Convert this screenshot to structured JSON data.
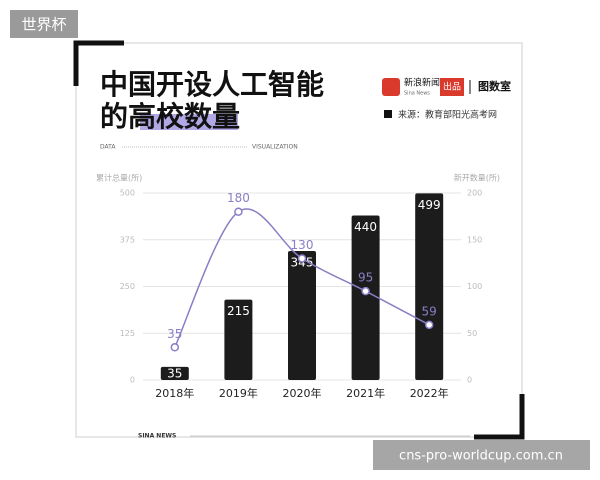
{
  "tag": "世界杯",
  "brand": {
    "name": "新浪新闻",
    "name_en": "Sina News",
    "made_by": "出品",
    "studio": "图数室"
  },
  "source": "来源：教育部阳光高考网",
  "divider_left": "DATA",
  "divider_right": "VISUALIZATION",
  "footer": "SINA NEWS",
  "watermark": "cns-pro-worldcup.com.cn",
  "chart_data": {
    "type": "bar_line",
    "title_lines": [
      "中国开设人工智能",
      "的高校数量"
    ],
    "ylabel": "累计总量(所)",
    "y2label": "新开数量(所)",
    "categories": [
      "2018年",
      "2019年",
      "2020年",
      "2021年",
      "2022年"
    ],
    "series": [
      {
        "name": "累计总量",
        "type": "bar",
        "color": "#1c1c1c",
        "values": [
          35,
          215,
          345,
          440,
          499
        ]
      },
      {
        "name": "新开数量",
        "type": "line",
        "axis": "y2",
        "color": "#8a7ec6",
        "values": [
          35,
          180,
          130,
          95,
          59
        ]
      }
    ],
    "ylim": [
      0,
      500
    ],
    "yticks": [
      0,
      125,
      250,
      375,
      500
    ],
    "y2lim": [
      0,
      200
    ],
    "y2ticks": [
      0,
      50,
      100,
      150,
      200
    ],
    "grid": true
  }
}
